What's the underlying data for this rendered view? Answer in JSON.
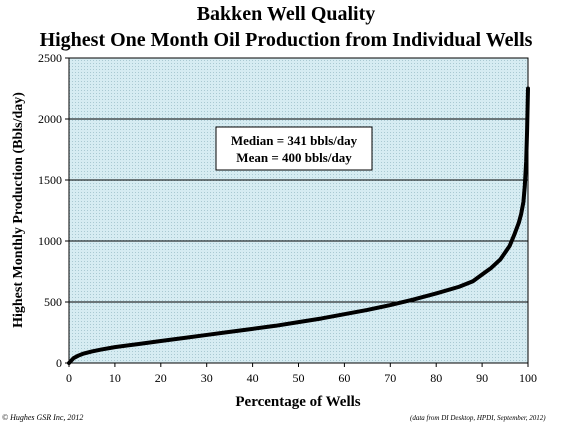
{
  "chart_data": {
    "type": "line",
    "title": "Bakken Well Quality",
    "subtitle": "Highest One Month Oil Production from Individual Wells",
    "xlabel": "Percentage of Wells",
    "ylabel": "Highest Monthly Production (Bbls/day)",
    "xlim": [
      0,
      100
    ],
    "ylim": [
      0,
      2500
    ],
    "xticks": [
      0,
      10,
      20,
      30,
      40,
      50,
      60,
      70,
      80,
      90,
      100
    ],
    "yticks": [
      0,
      500,
      1000,
      1500,
      2000,
      2500
    ],
    "grid": "horizontal",
    "annotation": [
      "Median = 341 bbls/day",
      "Mean = 400 bbls/day"
    ],
    "series": [
      {
        "x": [
          0,
          0.5,
          1,
          2,
          3,
          5,
          7,
          10,
          15,
          20,
          25,
          30,
          35,
          40,
          45,
          50,
          55,
          60,
          65,
          70,
          75,
          80,
          85,
          88,
          90,
          92,
          94,
          95,
          96,
          97,
          97.5,
          98,
          98.5,
          99,
          99.3,
          99.6,
          99.8,
          100
        ],
        "y": [
          0,
          20,
          40,
          60,
          75,
          95,
          110,
          130,
          155,
          180,
          205,
          230,
          255,
          280,
          305,
          335,
          365,
          400,
          435,
          475,
          520,
          570,
          625,
          670,
          725,
          780,
          850,
          905,
          960,
          1050,
          1100,
          1150,
          1220,
          1320,
          1450,
          1650,
          1900,
          2250
        ]
      }
    ],
    "line_color": "#000000",
    "plot_background": "#d6ecf2"
  },
  "footer": {
    "left": "© Hughes GSR Inc, 2012",
    "right": "(data from DI Desktop, HPDI, September, 2012)"
  }
}
